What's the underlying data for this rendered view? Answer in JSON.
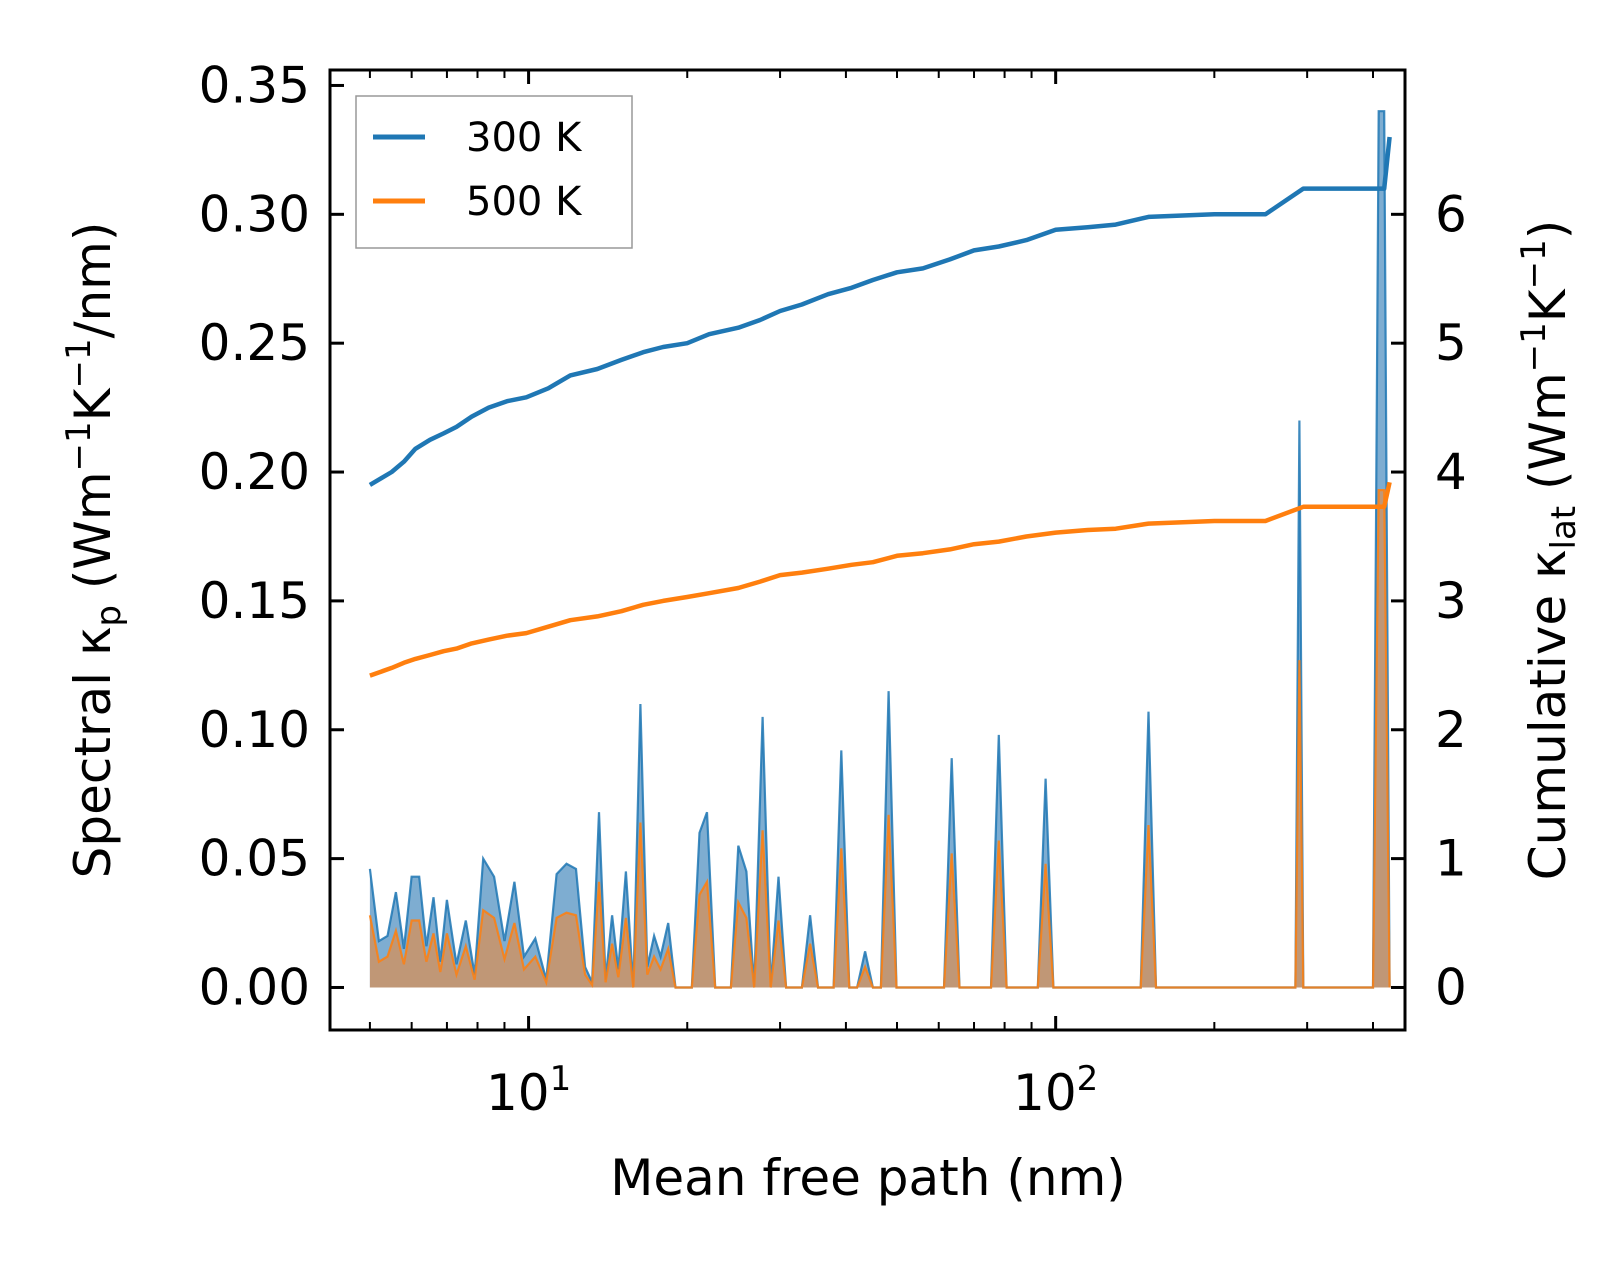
{
  "chart_data": {
    "type": "line",
    "xlabel": "Mean free path (nm)",
    "xscale": "log",
    "xlim": [
      4.2,
      460
    ],
    "y_left": {
      "label_parts": [
        "Spectral κ",
        "p",
        " (Wm",
        "−1",
        "K",
        "−1",
        "/nm)"
      ],
      "ylim": [
        -0.0165,
        0.356
      ],
      "ticks": [
        0.0,
        0.05,
        0.1,
        0.15,
        0.2,
        0.25,
        0.3,
        0.35
      ],
      "tick_labels": [
        "0.00",
        "0.05",
        "0.10",
        "0.15",
        "0.20",
        "0.25",
        "0.30",
        "0.35"
      ]
    },
    "y_right": {
      "label_parts": [
        "Cumulative κ",
        "lat",
        " (Wm",
        "−1",
        "K",
        "−1",
        ")"
      ],
      "ylim": [
        -0.33,
        7.12
      ],
      "ticks": [
        0,
        1,
        2,
        3,
        4,
        5,
        6
      ],
      "tick_labels": [
        "0",
        "1",
        "2",
        "3",
        "4",
        "5",
        "6"
      ]
    },
    "x_ticks": [
      {
        "value": 10,
        "base": "10",
        "exp": "1"
      },
      {
        "value": 100,
        "base": "10",
        "exp": "2"
      }
    ],
    "legend": {
      "location": "upper-left",
      "entries": [
        {
          "label": "300 K",
          "color": "#1f77b4"
        },
        {
          "label": "500 K",
          "color": "#ff7f0e"
        }
      ]
    },
    "colors": {
      "blue": "#1f77b4",
      "orange": "#ff7f0e",
      "spectral_300_fill": "#77a9cf",
      "spectral_500_fill": "#c8956b"
    },
    "cumulative": {
      "axis": "right",
      "series": [
        {
          "name": "300 K",
          "x": [
            5.0,
            5.5,
            5.8,
            6.1,
            6.5,
            6.9,
            7.3,
            7.8,
            8.4,
            9.1,
            9.9,
            10.9,
            12.0,
            13.5,
            15.0,
            16.5,
            18.0,
            20.0,
            22.0,
            25.0,
            27.5,
            30.0,
            33.0,
            37.0,
            41.0,
            45.0,
            50.0,
            56.0,
            63.0,
            70.0,
            78.0,
            88.0,
            100.0,
            115.0,
            130.0,
            150.0,
            200.0,
            250.0,
            295.0,
            350.0,
            420.0,
            430.0
          ],
          "y": [
            3.9,
            4.0,
            4.08,
            4.18,
            4.25,
            4.3,
            4.35,
            4.43,
            4.5,
            4.55,
            4.58,
            4.65,
            4.75,
            4.8,
            4.87,
            4.93,
            4.97,
            5.0,
            5.07,
            5.12,
            5.18,
            5.25,
            5.3,
            5.38,
            5.43,
            5.49,
            5.55,
            5.58,
            5.65,
            5.72,
            5.75,
            5.8,
            5.88,
            5.9,
            5.92,
            5.98,
            6.0,
            6.0,
            6.2,
            6.2,
            6.2,
            6.6
          ]
        },
        {
          "name": "500 K",
          "x": [
            5.0,
            5.5,
            5.8,
            6.1,
            6.5,
            6.9,
            7.3,
            7.8,
            8.4,
            9.1,
            9.9,
            10.9,
            12.0,
            13.5,
            15.0,
            16.5,
            18.0,
            20.0,
            22.0,
            25.0,
            27.5,
            30.0,
            33.0,
            37.0,
            41.0,
            45.0,
            50.0,
            56.0,
            63.0,
            70.0,
            78.0,
            88.0,
            100.0,
            115.0,
            130.0,
            150.0,
            200.0,
            250.0,
            295.0,
            350.0,
            420.0,
            430.0
          ],
          "y": [
            2.42,
            2.48,
            2.52,
            2.55,
            2.58,
            2.61,
            2.63,
            2.67,
            2.7,
            2.73,
            2.75,
            2.8,
            2.85,
            2.88,
            2.92,
            2.97,
            3.0,
            3.03,
            3.06,
            3.1,
            3.15,
            3.2,
            3.22,
            3.25,
            3.28,
            3.3,
            3.35,
            3.37,
            3.4,
            3.44,
            3.46,
            3.5,
            3.53,
            3.55,
            3.56,
            3.6,
            3.62,
            3.62,
            3.73,
            3.73,
            3.73,
            3.92
          ]
        }
      ]
    },
    "spectral": {
      "axis": "left",
      "x": [
        5.0,
        5.2,
        5.4,
        5.6,
        5.8,
        6.0,
        6.2,
        6.4,
        6.6,
        6.8,
        7.0,
        7.3,
        7.6,
        7.9,
        8.2,
        8.6,
        9.0,
        9.4,
        9.8,
        10.3,
        10.8,
        11.3,
        11.8,
        12.3,
        12.8,
        13.2,
        13.6,
        14.0,
        14.4,
        14.8,
        15.3,
        15.8,
        16.3,
        16.8,
        17.3,
        17.8,
        18.4,
        19.0,
        19.7,
        20.4,
        21.1,
        21.8,
        22.6,
        23.4,
        24.2,
        25.0,
        25.9,
        26.8,
        27.8,
        28.8,
        29.8,
        30.8,
        31.9,
        33.0,
        34.2,
        35.4,
        36.6,
        37.9,
        39.2,
        40.6,
        42.0,
        43.5,
        45.0,
        46.6,
        48.2,
        49.9,
        51.7,
        53.5,
        55.4,
        57.3,
        59.3,
        61.4,
        63.5,
        65.7,
        68.0,
        70.4,
        72.9,
        75.4,
        78.0,
        80.7,
        83.5,
        86.4,
        89.4,
        92.5,
        95.7,
        99.0,
        102.4,
        106.0,
        130.0,
        140.0,
        145.0,
        150.0,
        155.0,
        160.0,
        270.0,
        285.0,
        290.0,
        295.0,
        305.0,
        400.0,
        410.0,
        420.0,
        430.0
      ],
      "series": [
        {
          "name": "300 K",
          "y": [
            0.046,
            0.018,
            0.02,
            0.037,
            0.015,
            0.043,
            0.043,
            0.016,
            0.035,
            0.01,
            0.034,
            0.009,
            0.026,
            0.005,
            0.05,
            0.043,
            0.018,
            0.041,
            0.012,
            0.019,
            0.003,
            0.044,
            0.048,
            0.046,
            0.008,
            0.002,
            0.068,
            0.003,
            0.028,
            0.007,
            0.045,
            0.0,
            0.11,
            0.008,
            0.02,
            0.012,
            0.025,
            0.0,
            0.0,
            0.0,
            0.06,
            0.068,
            0.0,
            0.0,
            0.0,
            0.055,
            0.045,
            0.0,
            0.105,
            0.0,
            0.043,
            0.0,
            0.0,
            0.0,
            0.028,
            0.0,
            0.0,
            0.0,
            0.092,
            0.0,
            0.0,
            0.014,
            0.0,
            0.0,
            0.115,
            0.0,
            0.0,
            0.0,
            0.0,
            0.0,
            0.0,
            0.0,
            0.089,
            0.0,
            0.0,
            0.0,
            0.0,
            0.0,
            0.098,
            0.0,
            0.0,
            0.0,
            0.0,
            0.0,
            0.081,
            0.0,
            0.0,
            0.0,
            0.0,
            0.0,
            0.0,
            0.107,
            0.0,
            0.0,
            0.0,
            0.0,
            0.22,
            0.0,
            0.0,
            0.0,
            0.34,
            0.34,
            0.0
          ]
        },
        {
          "name": "500 K",
          "y": [
            0.028,
            0.01,
            0.012,
            0.022,
            0.009,
            0.026,
            0.026,
            0.01,
            0.021,
            0.006,
            0.021,
            0.005,
            0.016,
            0.003,
            0.03,
            0.027,
            0.011,
            0.025,
            0.007,
            0.012,
            0.002,
            0.027,
            0.029,
            0.028,
            0.005,
            0.001,
            0.041,
            0.002,
            0.017,
            0.004,
            0.027,
            0.0,
            0.064,
            0.005,
            0.012,
            0.007,
            0.015,
            0.0,
            0.0,
            0.0,
            0.036,
            0.041,
            0.0,
            0.0,
            0.0,
            0.033,
            0.027,
            0.0,
            0.061,
            0.0,
            0.026,
            0.0,
            0.0,
            0.0,
            0.017,
            0.0,
            0.0,
            0.0,
            0.054,
            0.0,
            0.0,
            0.008,
            0.0,
            0.0,
            0.067,
            0.0,
            0.0,
            0.0,
            0.0,
            0.0,
            0.0,
            0.0,
            0.052,
            0.0,
            0.0,
            0.0,
            0.0,
            0.0,
            0.057,
            0.0,
            0.0,
            0.0,
            0.0,
            0.0,
            0.048,
            0.0,
            0.0,
            0.0,
            0.0,
            0.0,
            0.0,
            0.063,
            0.0,
            0.0,
            0.0,
            0.0,
            0.127,
            0.0,
            0.0,
            0.0,
            0.193,
            0.193,
            0.0
          ]
        }
      ]
    }
  }
}
